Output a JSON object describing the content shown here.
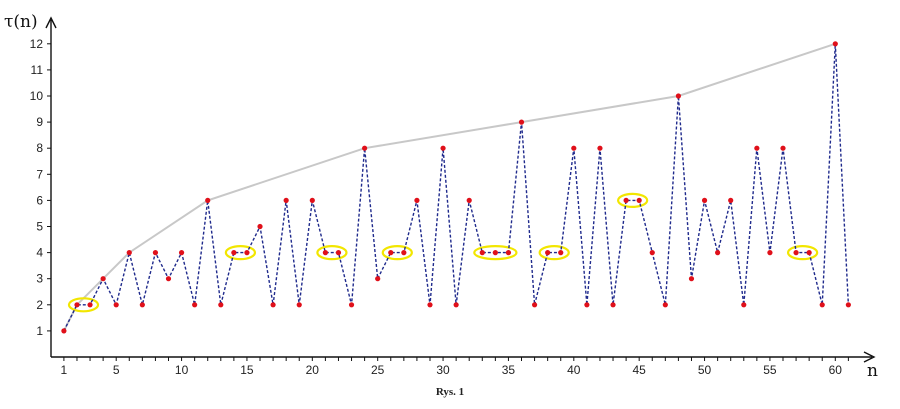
{
  "chart_data": {
    "type": "line",
    "title": "",
    "xlabel": "n",
    "ylabel": "τ(n)",
    "caption": "Rys. 1",
    "xlim": [
      0,
      62
    ],
    "ylim": [
      0,
      13
    ],
    "x_ticks": [
      1,
      5,
      10,
      15,
      20,
      25,
      30,
      35,
      40,
      45,
      50,
      55,
      60
    ],
    "y_ticks": [
      1,
      2,
      3,
      4,
      5,
      6,
      7,
      8,
      9,
      10,
      11,
      12
    ],
    "grid": false,
    "series": [
      {
        "role": "divisor-count",
        "style": "dashed",
        "color": "#1f2a8c",
        "marker_color": "#e0101a",
        "x": [
          1,
          2,
          3,
          4,
          5,
          6,
          7,
          8,
          9,
          10,
          11,
          12,
          13,
          14,
          15,
          16,
          17,
          18,
          19,
          20,
          21,
          22,
          23,
          24,
          25,
          26,
          27,
          28,
          29,
          30,
          31,
          32,
          33,
          34,
          35,
          36,
          37,
          38,
          39,
          40,
          41,
          42,
          43,
          44,
          45,
          46,
          47,
          48,
          49,
          50,
          51,
          52,
          53,
          54,
          55,
          56,
          57,
          58,
          59,
          60,
          61
        ],
        "y": [
          1,
          2,
          2,
          3,
          2,
          4,
          2,
          4,
          3,
          4,
          2,
          6,
          2,
          4,
          4,
          5,
          2,
          6,
          2,
          6,
          4,
          4,
          2,
          8,
          3,
          4,
          4,
          6,
          2,
          8,
          2,
          6,
          4,
          4,
          4,
          9,
          2,
          4,
          4,
          8,
          2,
          8,
          2,
          6,
          6,
          4,
          2,
          10,
          3,
          6,
          4,
          6,
          2,
          8,
          4,
          8,
          4,
          4,
          2,
          12,
          2
        ]
      },
      {
        "role": "record-envelope",
        "style": "solid",
        "color": "#c8c8c8",
        "x": [
          1,
          2,
          4,
          6,
          12,
          24,
          36,
          48,
          60
        ],
        "y": [
          1,
          2,
          3,
          4,
          6,
          8,
          9,
          10,
          12
        ]
      }
    ],
    "highlight_color": "#f2e600",
    "highlights": [
      {
        "x_from": 2,
        "x_to": 3,
        "y": 2
      },
      {
        "x_from": 14,
        "x_to": 15,
        "y": 4
      },
      {
        "x_from": 21,
        "x_to": 22,
        "y": 4
      },
      {
        "x_from": 26,
        "x_to": 27,
        "y": 4
      },
      {
        "x_from": 33,
        "x_to": 35,
        "y": 4
      },
      {
        "x_from": 38,
        "x_to": 39,
        "y": 4
      },
      {
        "x_from": 44,
        "x_to": 45,
        "y": 6
      },
      {
        "x_from": 57,
        "x_to": 58,
        "y": 4
      }
    ]
  }
}
